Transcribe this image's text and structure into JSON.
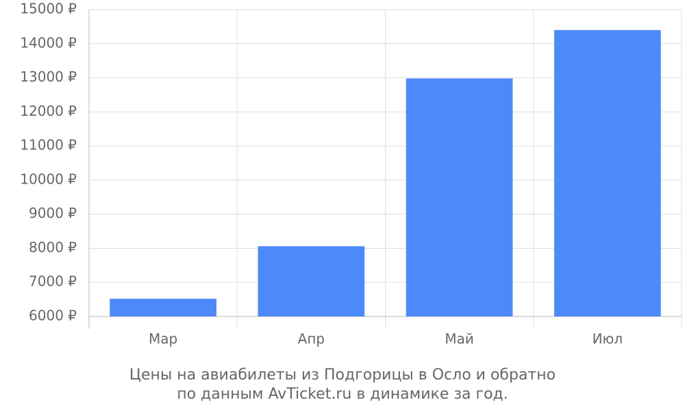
{
  "chart_data": {
    "type": "bar",
    "title": "Цены на авиабилеты из Подгорицы в Осло и обратно",
    "subtitle": "по данным AvTicket.ru в динамике за год.",
    "categories": [
      "Мар",
      "Апр",
      "Май",
      "Июл"
    ],
    "values": [
      6520,
      8060,
      12980,
      14400
    ],
    "color": "#4d8af9",
    "ylim": [
      6000,
      15000
    ],
    "yticks": [
      {
        "value": 6000,
        "label": "6000 ₽"
      },
      {
        "value": 7000,
        "label": "7000 ₽"
      },
      {
        "value": 8000,
        "label": "8000 ₽"
      },
      {
        "value": 9000,
        "label": "9000 ₽"
      },
      {
        "value": 10000,
        "label": "10000 ₽"
      },
      {
        "value": 11000,
        "label": "11000 ₽"
      },
      {
        "value": 12000,
        "label": "12000 ₽"
      },
      {
        "value": 13000,
        "label": "13000 ₽"
      },
      {
        "value": 14000,
        "label": "14000 ₽"
      },
      {
        "value": 15000,
        "label": "15000 ₽"
      }
    ],
    "grid": true
  }
}
